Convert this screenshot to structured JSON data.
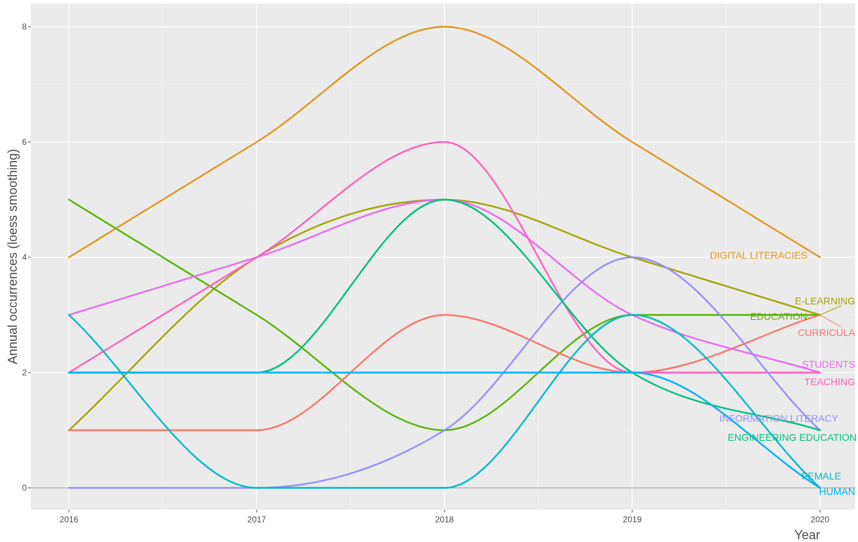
{
  "chart_data": {
    "type": "line",
    "title": "",
    "xlabel": "Year",
    "ylabel": "Annual occurrences (loess smoothing)",
    "x": [
      2016,
      2017,
      2018,
      2019,
      2020
    ],
    "x_ticks": [
      "2016",
      "2017",
      "2018",
      "2019",
      "2020"
    ],
    "y_ticks": [
      "0",
      "2",
      "4",
      "6",
      "8"
    ],
    "xlim": [
      2015.83,
      2020.2
    ],
    "ylim": [
      -0.4,
      8.4
    ],
    "grid": true,
    "legend": "none (labels placed at line ends)",
    "series": [
      {
        "name": "DIGITAL LITERACIES",
        "color": "#dd9a1f",
        "values": [
          4,
          6,
          8,
          6,
          4
        ]
      },
      {
        "name": "E-LEARNING",
        "color": "#a3a500",
        "values": [
          1,
          4,
          5,
          4,
          3
        ]
      },
      {
        "name": "EDUCATION",
        "color": "#5bb300",
        "values": [
          5,
          3,
          1,
          3,
          3
        ]
      },
      {
        "name": "CURRICULA",
        "color": "#f8766d",
        "values": [
          1,
          1,
          3,
          2,
          3
        ]
      },
      {
        "name": "STUDENTS",
        "color": "#e76bf3",
        "values": [
          3,
          4,
          5,
          3,
          2
        ]
      },
      {
        "name": "TEACHING",
        "color": "#ff62bc",
        "values": [
          2,
          4,
          6,
          2,
          2
        ]
      },
      {
        "name": "INFORMATION LITERACY",
        "color": "#9590ff",
        "values": [
          0,
          0,
          1,
          4,
          1
        ]
      },
      {
        "name": "ENGINEERING EDUCATION",
        "color": "#00bf7d",
        "values": [
          2,
          2,
          5,
          2,
          1
        ]
      },
      {
        "name": "FEMALE",
        "color": "#00bcc5",
        "values": [
          3,
          0,
          0,
          3,
          0
        ]
      },
      {
        "name": "HUMAN",
        "color": "#00b0f6",
        "values": [
          2,
          2,
          2,
          2,
          0
        ]
      }
    ]
  }
}
